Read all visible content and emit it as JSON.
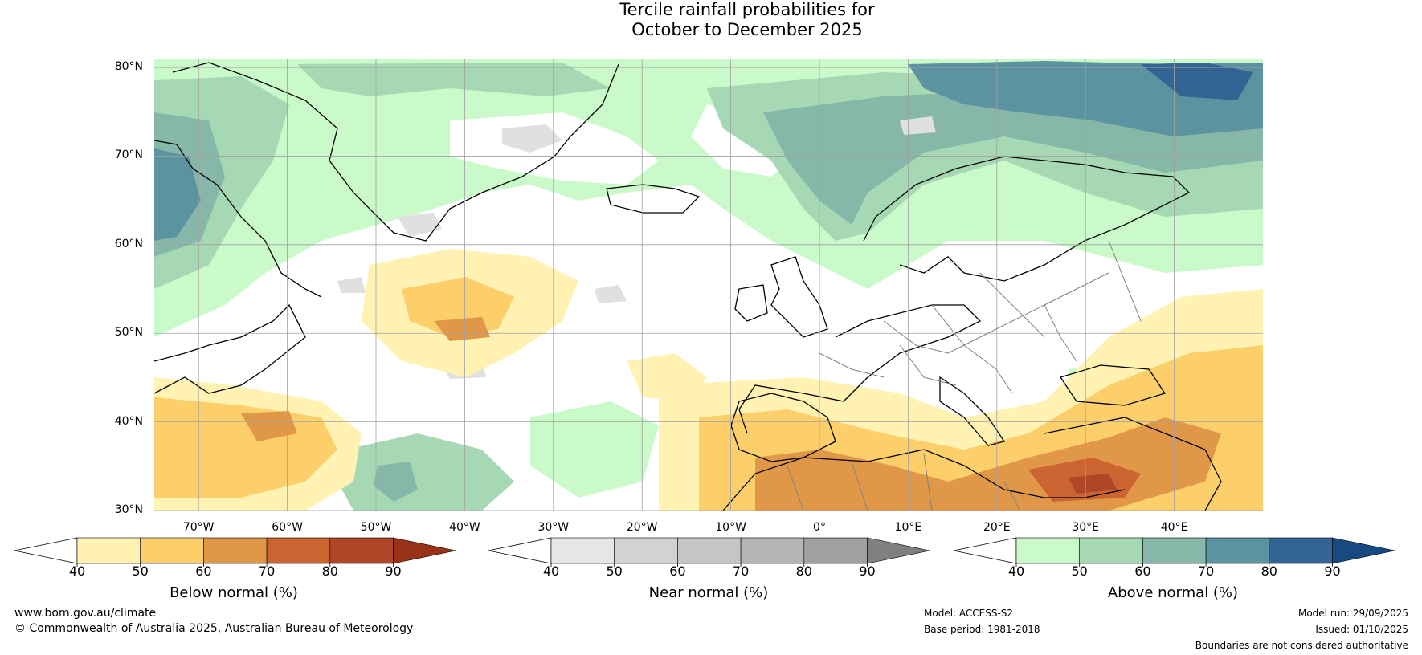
{
  "title": {
    "line1": "Tercile rainfall probabilities for",
    "line2": "October to December 2025"
  },
  "map": {
    "lat_labels": [
      "80°N",
      "70°N",
      "60°N",
      "50°N",
      "40°N",
      "30°N"
    ],
    "lon_labels": [
      "70°W",
      "60°W",
      "50°W",
      "40°W",
      "30°W",
      "20°W",
      "10°W",
      "0°",
      "10°E",
      "20°E",
      "30°E",
      "40°E"
    ],
    "lat_range": [
      30,
      81
    ],
    "lon_range": [
      -75,
      50
    ],
    "colors": {
      "ocean_white": "#ffffff",
      "coastline": "#000000",
      "borders": "#808080",
      "gridlines": "#a0a0a0"
    }
  },
  "colorbars": [
    {
      "label": "Below normal (%)",
      "ticks": [
        "40",
        "50",
        "60",
        "70",
        "80",
        "90"
      ],
      "colors": [
        "#fff2b2",
        "#fdcf6a",
        "#e09848",
        "#cc6432",
        "#b04628",
        "#983218"
      ],
      "under_color": "#ffffff"
    },
    {
      "label": "Near normal (%)",
      "ticks": [
        "40",
        "50",
        "60",
        "70",
        "80",
        "90"
      ],
      "colors": [
        "#e6e6e6",
        "#d2d2d2",
        "#c5c5c5",
        "#b5b5b5",
        "#a0a0a0",
        "#808080"
      ],
      "under_color": "#ffffff"
    },
    {
      "label": "Above normal (%)",
      "ticks": [
        "40",
        "50",
        "60",
        "70",
        "80",
        "90"
      ],
      "colors": [
        "#caf9ca",
        "#a6d8b4",
        "#86b7a9",
        "#5c93a0",
        "#336493",
        "#174a80"
      ],
      "under_color": "#ffffff"
    }
  ],
  "footer": {
    "website": "www.bom.gov.au/climate",
    "copyright": "© Commonwealth of Australia 2025, Australian Bureau of Meteorology",
    "model": "Model: ACCESS-S2",
    "base_period": "Base period: 1981-2018",
    "model_run": "Model run: 29/09/2025",
    "issued": "Issued: 01/10/2025",
    "disclaimer": "Boundaries are not considered authoritative"
  }
}
